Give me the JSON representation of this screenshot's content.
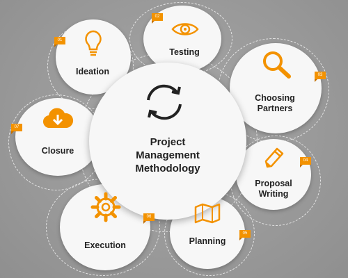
{
  "center": {
    "line1": "Project",
    "line2": "Management",
    "line3": "Methodology",
    "icon": "refresh-icon"
  },
  "steps": [
    {
      "number": "01",
      "label": "Ideation",
      "icon": "lightbulb-icon"
    },
    {
      "number": "02",
      "label": "Testing",
      "icon": "eye-icon"
    },
    {
      "number": "03",
      "line1": "Choosing",
      "line2": "Partners",
      "icon": "magnifier-icon"
    },
    {
      "number": "04",
      "line1": "Proposal",
      "line2": "Writing",
      "icon": "pencil-icon"
    },
    {
      "number": "05",
      "label": "Planning",
      "icon": "map-icon"
    },
    {
      "number": "06",
      "label": "Execution",
      "icon": "gear-icon"
    },
    {
      "number": "07",
      "label": "Closure",
      "icon": "cloud-download-icon"
    }
  ],
  "colors": {
    "accent": "#f39200",
    "background": "#9a9a9a",
    "circle": "#f7f7f7",
    "text": "#222222"
  }
}
